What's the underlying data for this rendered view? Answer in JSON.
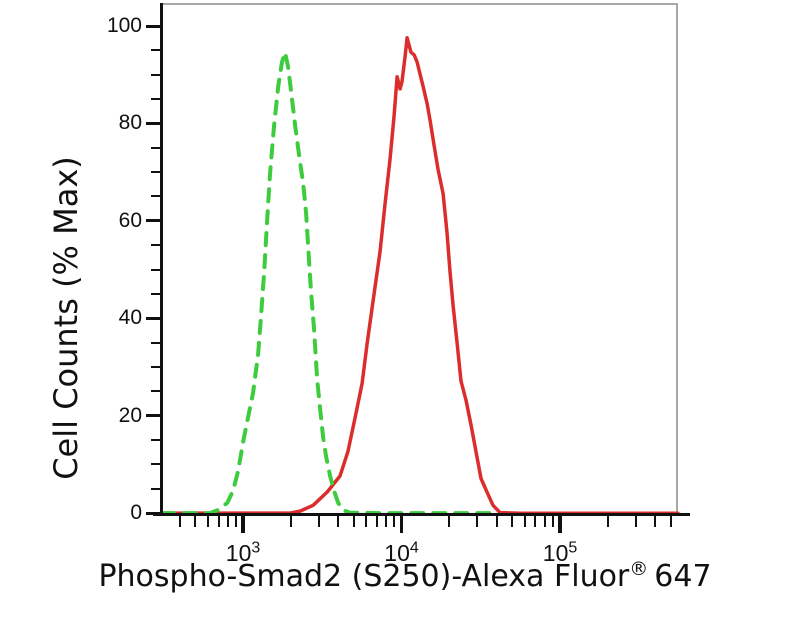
{
  "figure": {
    "background": "#ffffff",
    "axis_color": "#111111",
    "frame_color": "#a8a8a8"
  },
  "chart_data": {
    "type": "line",
    "subtype": "flow-cytometry-overlay-histogram",
    "grid": false,
    "legend": "none",
    "x_axis": {
      "scale": "log10",
      "min": 308,
      "max": 555000,
      "label_main": "Phospho-Smad2 (S250)-Alexa Fluor",
      "label_sup": "®",
      "label_suffix": "647",
      "ticks": [
        {
          "value": 1000,
          "base": "10",
          "exp": "3"
        },
        {
          "value": 10000,
          "base": "10",
          "exp": "4"
        },
        {
          "value": 100000,
          "base": "10",
          "exp": "5"
        }
      ],
      "minor_tick_pattern": "log decades 2-9"
    },
    "y_axis": {
      "min": 0,
      "max": 100,
      "label": "Cell Counts (% Max)",
      "major_ticks": [
        0,
        20,
        40,
        60,
        80,
        100
      ],
      "minor_step": 5
    },
    "series": [
      {
        "id": "control_unstained",
        "style": "dashed",
        "color": "#3ecb3e",
        "stroke_width": 4,
        "points": [
          [
            308,
            0.4
          ],
          [
            620,
            0.4
          ],
          [
            695,
            1
          ],
          [
            795,
            2.5
          ],
          [
            865,
            5
          ],
          [
            930,
            9
          ],
          [
            1000,
            15
          ],
          [
            1075,
            20
          ],
          [
            1155,
            25
          ],
          [
            1245,
            33
          ],
          [
            1300,
            41
          ],
          [
            1360,
            50
          ],
          [
            1415,
            60
          ],
          [
            1480,
            70
          ],
          [
            1570,
            80
          ],
          [
            1665,
            88
          ],
          [
            1760,
            93
          ],
          [
            1840,
            95
          ],
          [
            1925,
            92
          ],
          [
            2010,
            87
          ],
          [
            2130,
            80
          ],
          [
            2255,
            74
          ],
          [
            2395,
            68
          ],
          [
            2500,
            62
          ],
          [
            2610,
            52
          ],
          [
            2685,
            46
          ],
          [
            2805,
            38
          ],
          [
            2930,
            28
          ],
          [
            3060,
            22
          ],
          [
            3200,
            16
          ],
          [
            3340,
            12
          ],
          [
            3540,
            8
          ],
          [
            3750,
            5
          ],
          [
            3980,
            2.5
          ],
          [
            4275,
            1
          ],
          [
            4730,
            0.5
          ],
          [
            7300,
            0.4
          ],
          [
            13100,
            0.4
          ],
          [
            23400,
            0.4
          ],
          [
            40000,
            0.4
          ]
        ]
      },
      {
        "id": "phospho_smad2_stained",
        "style": "solid",
        "color": "#dc2d2d",
        "stroke_width": 3.5,
        "points": [
          [
            308,
            0.4
          ],
          [
            1980,
            0.4
          ],
          [
            2290,
            0.8
          ],
          [
            2765,
            2
          ],
          [
            3390,
            4.7
          ],
          [
            4090,
            8
          ],
          [
            4590,
            13
          ],
          [
            5090,
            20
          ],
          [
            5640,
            27
          ],
          [
            6050,
            35
          ],
          [
            6610,
            44
          ],
          [
            7310,
            54
          ],
          [
            7870,
            64
          ],
          [
            8450,
            73
          ],
          [
            8970,
            82
          ],
          [
            9375,
            90
          ],
          [
            9795,
            87.5
          ],
          [
            10070,
            89
          ],
          [
            10520,
            94
          ],
          [
            10840,
            98
          ],
          [
            11140,
            96.5
          ],
          [
            11480,
            95
          ],
          [
            12000,
            94.5
          ],
          [
            12530,
            93
          ],
          [
            13100,
            90.5
          ],
          [
            13680,
            88
          ],
          [
            14490,
            84.5
          ],
          [
            15140,
            81
          ],
          [
            16030,
            76
          ],
          [
            16980,
            71
          ],
          [
            18280,
            66
          ],
          [
            19360,
            58
          ],
          [
            20230,
            50
          ],
          [
            21140,
            43
          ],
          [
            22390,
            35.5
          ],
          [
            23710,
            27.5
          ],
          [
            25530,
            23.5
          ],
          [
            27420,
            18.5
          ],
          [
            29510,
            13
          ],
          [
            31700,
            7.5
          ],
          [
            34590,
            4.7
          ],
          [
            37760,
            2
          ],
          [
            41780,
            0.5
          ],
          [
            55850,
            0.35
          ],
          [
            178600,
            0.35
          ],
          [
            554600,
            0.35
          ]
        ]
      }
    ]
  }
}
